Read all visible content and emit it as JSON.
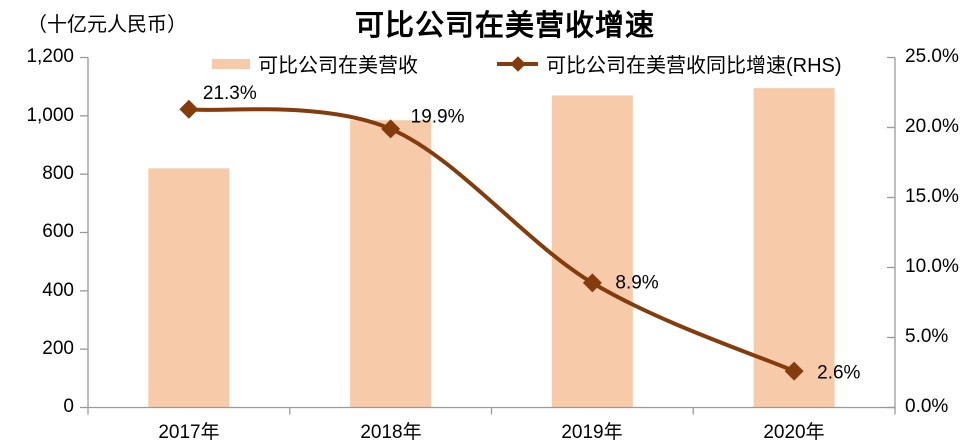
{
  "header": {
    "unit_label": "（十亿元人民币）",
    "title": "可比公司在美营收增速"
  },
  "chart_data": {
    "type": "bar+line",
    "title": "可比公司在美营收增速",
    "unit_label": "（十亿元人民币）",
    "categories": [
      "2017年",
      "2018年",
      "2019年",
      "2020年"
    ],
    "series": [
      {
        "name": "可比公司在美营收",
        "type": "bar",
        "axis": "left",
        "color": "#F7CBAA",
        "values": [
          820,
          985,
          1070,
          1095
        ]
      },
      {
        "name": "可比公司在美营收同比增速(RHS)",
        "type": "line",
        "axis": "right",
        "color": "#843C0C",
        "values": [
          21.3,
          19.9,
          8.9,
          2.6
        ],
        "point_labels": [
          "21.3%",
          "19.9%",
          "8.9%",
          "2.6%"
        ]
      }
    ],
    "left_axis": {
      "min": 0,
      "max": 1200,
      "tick_labels": [
        "1,200",
        "1,000",
        "800",
        "600",
        "400",
        "200",
        "0"
      ]
    },
    "right_axis": {
      "min": 0,
      "max": 25,
      "tick_labels": [
        "25.0%",
        "20.0%",
        "15.0%",
        "10.0%",
        "5.0%",
        "0.0%"
      ]
    },
    "legend_position": "top",
    "grid": false,
    "axis_line_color": "#9a9a9a",
    "text_color": "#000000"
  }
}
